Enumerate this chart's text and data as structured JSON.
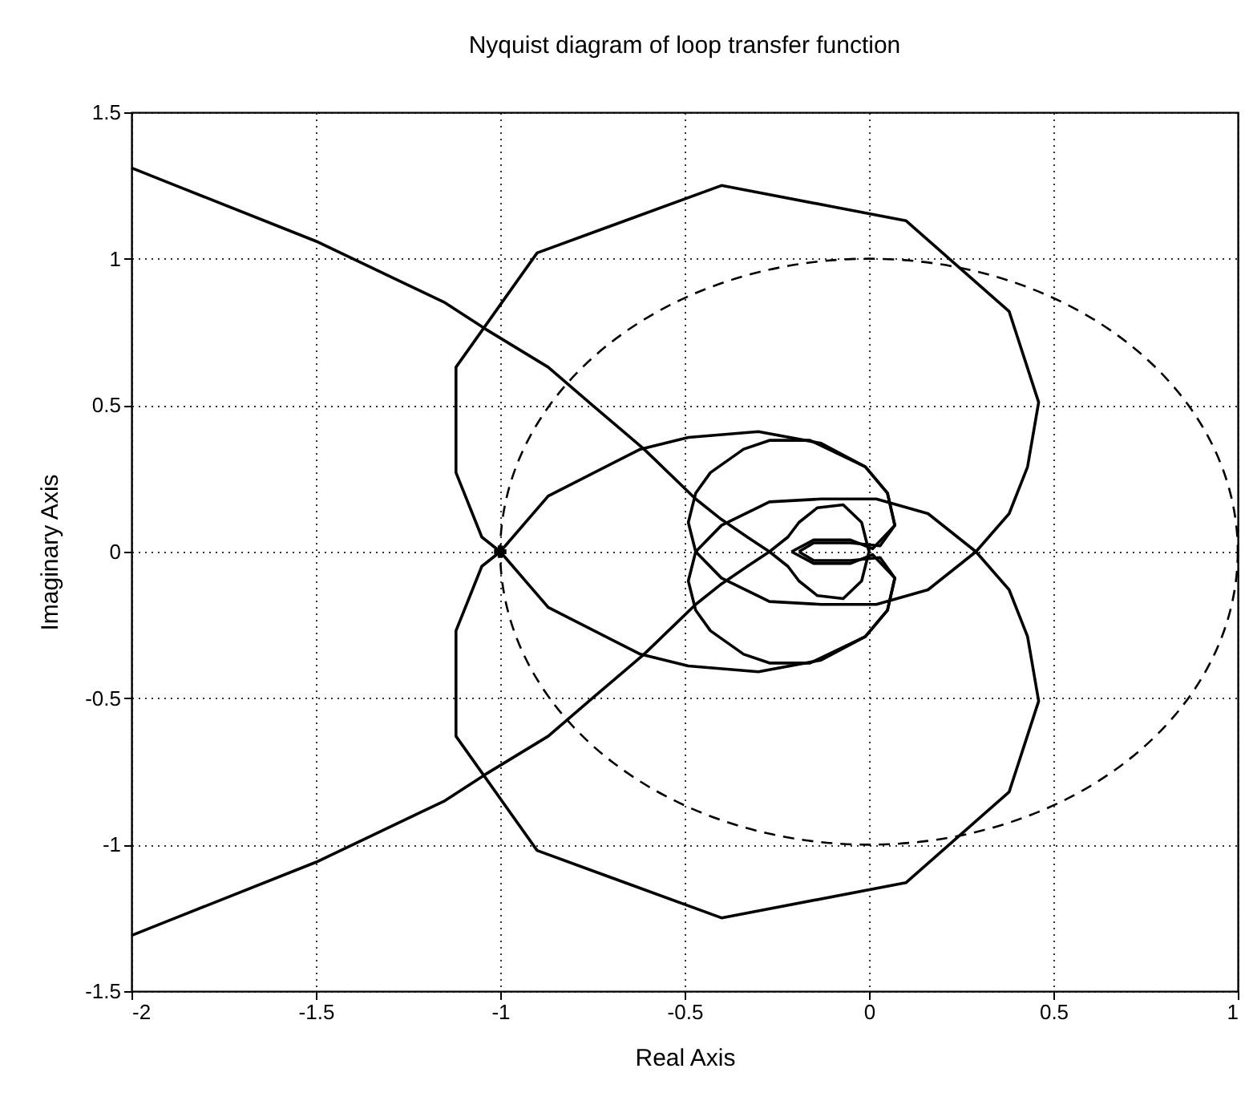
{
  "chart_data": {
    "type": "line",
    "title": "Nyquist diagram of loop transfer function",
    "xlabel": "Real Axis",
    "ylabel": "Imaginary Axis",
    "xlim": [
      -2,
      1
    ],
    "ylim": [
      -1.5,
      1.5
    ],
    "xticks": [
      -2,
      -1.5,
      -1,
      -0.5,
      0,
      0.5,
      1
    ],
    "yticks": [
      -1.5,
      -1,
      -0.5,
      0,
      0.5,
      1,
      1.5
    ],
    "grid": true,
    "series": [
      {
        "color": "#000000",
        "line_style": "solid",
        "x": [
          -2,
          -1.88,
          -1.5,
          -1.15,
          -1.04,
          -0.87,
          -0.75,
          -0.61,
          -0.47,
          -0.4,
          -0.33,
          -0.27,
          -0.22,
          -0.19,
          -0.14,
          -0.07,
          -0.02,
          0,
          -0.02,
          -0.07,
          -0.14,
          -0.19,
          -0.22,
          -0.27,
          -0.33,
          -0.4,
          -0.47,
          -0.61,
          -0.75,
          -0.87,
          -1.04,
          -1.15,
          -1.5,
          -1.88,
          -2
        ],
        "values": [
          1.31,
          1.25,
          1.06,
          0.85,
          0.76,
          0.63,
          0.5,
          0.35,
          0.18,
          0.11,
          0.05,
          0,
          -0.05,
          -0.1,
          -0.15,
          -0.16,
          -0.1,
          0,
          0.1,
          0.16,
          0.15,
          0.1,
          0.05,
          0,
          -0.05,
          -0.11,
          -0.18,
          -0.35,
          -0.5,
          -0.63,
          -0.76,
          -0.85,
          -1.06,
          -1.25,
          -1.31
        ]
      },
      {
        "color": "#000000",
        "line_style": "solid",
        "x": [
          -1,
          -1.05,
          -1.12,
          -1.12,
          -0.9,
          -0.4,
          0.1,
          0.38,
          0.46,
          0.43,
          0.38,
          0.29,
          0.16,
          0.02,
          -0.13,
          -0.27,
          -0.4,
          -0.47,
          -0.49,
          -0.47,
          -0.43,
          -0.34,
          -0.27,
          -0.16,
          -0.01,
          0.05,
          0.07,
          0.01,
          -0.05,
          -0.15,
          -0.21
        ],
        "values": [
          0,
          -0.05,
          -0.27,
          -0.63,
          -1.02,
          -1.25,
          -1.13,
          -0.82,
          -0.51,
          -0.29,
          -0.13,
          0,
          0.13,
          0.18,
          0.18,
          0.17,
          0.09,
          0,
          -0.1,
          -0.2,
          -0.27,
          -0.35,
          -0.38,
          -0.38,
          -0.29,
          -0.2,
          -0.09,
          -0.01,
          -0.04,
          -0.04,
          0
        ]
      },
      {
        "color": "#000000",
        "line_style": "solid",
        "x": [
          -0.21,
          -0.15,
          -0.05,
          0.01,
          0.07,
          0.05,
          -0.01,
          -0.16,
          -0.27,
          -0.34,
          -0.43,
          -0.47,
          -0.49,
          -0.47,
          -0.4,
          -0.27,
          -0.13,
          0.02,
          0.16,
          0.29,
          0.38,
          0.43,
          0.46,
          0.38,
          0.1,
          -0.4,
          -0.9,
          -1.12,
          -1.12,
          -1.05,
          -1
        ],
        "values": [
          0,
          0.04,
          0.04,
          0.01,
          0.09,
          0.2,
          0.29,
          0.38,
          0.38,
          0.35,
          0.27,
          0.2,
          0.1,
          0,
          -0.09,
          -0.17,
          -0.18,
          -0.18,
          -0.13,
          0,
          0.13,
          0.29,
          0.51,
          0.82,
          1.13,
          1.25,
          1.02,
          0.63,
          0.27,
          0.05,
          0
        ]
      },
      {
        "color": "#000000",
        "line_style": "solid",
        "x": [
          -1,
          -0.87,
          -0.62,
          -0.49,
          -0.3,
          -0.13,
          -0.01,
          0.05,
          0.07,
          0.03,
          -0.05,
          -0.15,
          -0.19
        ],
        "values": [
          0,
          0.19,
          0.35,
          0.39,
          0.41,
          0.37,
          0.29,
          0.2,
          0.09,
          0.02,
          0.03,
          0.03,
          0
        ]
      },
      {
        "color": "#000000",
        "line_style": "solid",
        "x": [
          -0.19,
          -0.15,
          -0.05,
          0.03,
          0.07,
          0.05,
          -0.01,
          -0.13,
          -0.3,
          -0.49,
          -0.62,
          -0.87,
          -1
        ],
        "values": [
          0,
          -0.03,
          -0.03,
          -0.02,
          -0.09,
          -0.2,
          -0.29,
          -0.37,
          -0.41,
          -0.39,
          -0.35,
          -0.19,
          0
        ]
      },
      {
        "type": "scatter",
        "color": "#000000",
        "marker": "cross",
        "x": [
          -1
        ],
        "values": [
          0
        ]
      }
    ]
  }
}
